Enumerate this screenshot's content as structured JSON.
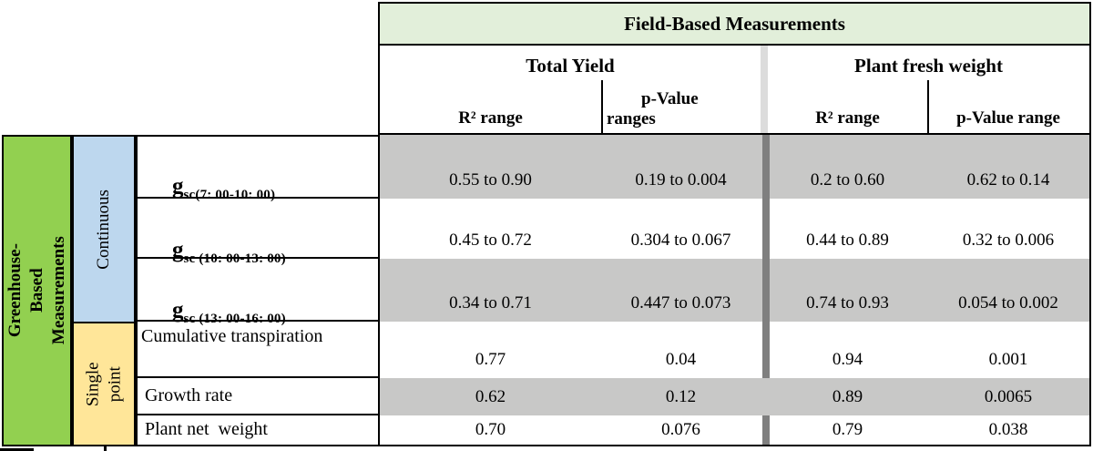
{
  "header": {
    "banner": "Field-Based Measurements",
    "groups": [
      {
        "label": "Total Yield",
        "col1": "R² range",
        "col2_line1": "p-Value",
        "col2_line2": "ranges"
      },
      {
        "label": "Plant fresh weight",
        "col1": "R² range",
        "col2": "p-Value range"
      }
    ]
  },
  "left": {
    "main_label": "Greenhouse-Based\nMeasurements",
    "sections": [
      {
        "label": "Continuous"
      },
      {
        "label": "Single point"
      }
    ]
  },
  "rows": [
    {
      "label_main": "g",
      "label_sub": "sc(7: 00-10: 00)",
      "shaded": true,
      "values": [
        "0.55 to 0.90",
        "0.19 to 0.004",
        "0.2 to 0.60",
        "0.62 to 0.14"
      ]
    },
    {
      "label_main": "g",
      "label_sub": "sc (10: 00-13: 00)",
      "shaded": false,
      "values": [
        "0.45 to 0.72",
        "0.304 to 0.067",
        "0.44 to 0.89",
        "0.32 to 0.006"
      ]
    },
    {
      "label_main": "g",
      "label_sub": "sc (13: 00-16: 00)",
      "shaded": true,
      "values": [
        "0.34 to 0.71",
        "0.447 to 0.073",
        "0.74 to 0.93",
        "0.054 to 0.002"
      ]
    },
    {
      "label": "Cumulative transpiration",
      "shaded": false,
      "values": [
        "0.77",
        "0.04",
        "0.94",
        "0.001"
      ]
    },
    {
      "label": "Growth rate",
      "shaded": true,
      "values": [
        "0.62",
        "0.12",
        "0.89",
        "0.0065"
      ]
    },
    {
      "label": "Plant net  weight",
      "shaded": false,
      "values": [
        "0.70",
        "0.076",
        "0.79",
        "0.038"
      ]
    }
  ],
  "colors": {
    "banner_bg": "#e2efda",
    "green": "#92d050",
    "blue": "#bdd7ee",
    "yellow": "#ffe699",
    "shaded_row": "#c8c8c7",
    "divider": "#7f7f7f",
    "header_band": "#dcdcdc"
  }
}
